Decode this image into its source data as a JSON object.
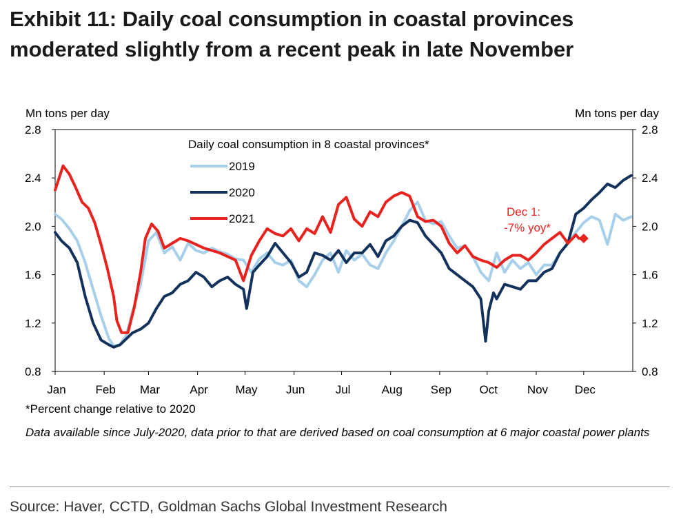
{
  "header": {
    "title": "Exhibit 11: Daily coal consumption in coastal provinces moderated slightly from a recent peak in late November"
  },
  "footnote": "*Percent change relative to 2020",
  "note": "Data available since July-2020, data prior to that are derived based on coal consumption at 6 major coastal power plants",
  "source": "Source: Haver, CCTD, Goldman Sachs Global Investment Research",
  "chart_data": {
    "type": "line",
    "title": "Daily coal consumption in 8 coastal provinces*",
    "ylabel_left": "Mn tons per day",
    "ylabel_right": "Mn tons per day",
    "ylim": [
      0.8,
      2.8
    ],
    "yticks": [
      "0.8",
      "1.2",
      "1.6",
      "2.0",
      "2.4",
      "2.8"
    ],
    "ytick_values": [
      0.8,
      1.2,
      1.6,
      2.0,
      2.4,
      2.8
    ],
    "x_tick_labels": [
      "Jan",
      "Feb",
      "Mar",
      "Apr",
      "May",
      "Jun",
      "Jul",
      "Aug",
      "Sep",
      "Oct",
      "Nov",
      "Dec"
    ],
    "x_unit": "day of year (1 = Jan 1)",
    "grid": false,
    "legend_position": "top-center",
    "annotation": {
      "text_line1": "Dec 1:",
      "text_line2": "-7% yoy*",
      "color": "#e8231e"
    },
    "series": [
      {
        "name": "2019",
        "color": "#a7cfea",
        "x": [
          1,
          5,
          10,
          15,
          20,
          25,
          30,
          35,
          38,
          42,
          46,
          50,
          55,
          60,
          65,
          70,
          75,
          80,
          85,
          90,
          95,
          100,
          105,
          110,
          115,
          120,
          125,
          130,
          135,
          140,
          145,
          150,
          155,
          160,
          165,
          170,
          175,
          180,
          185,
          190,
          195,
          200,
          205,
          210,
          215,
          220,
          225,
          230,
          235,
          240,
          245,
          250,
          255,
          260,
          265,
          270,
          275,
          280,
          285,
          290,
          295,
          300,
          305,
          310,
          315,
          320,
          325,
          330,
          335,
          340,
          345,
          350,
          355,
          360,
          365
        ],
        "values": [
          2.1,
          2.06,
          1.98,
          1.88,
          1.7,
          1.48,
          1.26,
          1.07,
          1.01,
          1.02,
          1.1,
          1.3,
          1.52,
          1.88,
          1.95,
          1.78,
          1.83,
          1.72,
          1.86,
          1.8,
          1.78,
          1.82,
          1.79,
          1.77,
          1.73,
          1.72,
          1.62,
          1.73,
          1.78,
          1.7,
          1.68,
          1.72,
          1.55,
          1.5,
          1.6,
          1.72,
          1.78,
          1.62,
          1.8,
          1.72,
          1.77,
          1.68,
          1.65,
          1.78,
          1.88,
          2.0,
          2.13,
          2.2,
          2.05,
          2.02,
          2.04,
          1.92,
          1.82,
          1.84,
          1.75,
          1.62,
          1.55,
          1.78,
          1.62,
          1.72,
          1.65,
          1.7,
          1.6,
          1.68,
          1.68,
          1.78,
          1.86,
          1.95,
          2.03,
          2.08,
          2.05,
          1.85,
          2.1,
          2.05,
          2.08
        ]
      },
      {
        "name": "2020",
        "color": "#12325c",
        "x": [
          1,
          5,
          10,
          15,
          20,
          25,
          30,
          35,
          38,
          42,
          46,
          50,
          55,
          60,
          65,
          70,
          75,
          80,
          85,
          90,
          95,
          100,
          105,
          110,
          115,
          120,
          122,
          126,
          130,
          135,
          140,
          145,
          150,
          155,
          160,
          165,
          170,
          175,
          180,
          185,
          190,
          195,
          200,
          205,
          210,
          215,
          220,
          225,
          230,
          235,
          240,
          245,
          250,
          255,
          260,
          265,
          270,
          273,
          275,
          278,
          280,
          285,
          290,
          295,
          300,
          305,
          310,
          315,
          320,
          325,
          330,
          335,
          340,
          345,
          350,
          355,
          360,
          365
        ],
        "values": [
          1.95,
          1.88,
          1.82,
          1.7,
          1.42,
          1.2,
          1.06,
          1.02,
          1.0,
          1.02,
          1.07,
          1.12,
          1.15,
          1.2,
          1.32,
          1.42,
          1.45,
          1.52,
          1.55,
          1.62,
          1.58,
          1.5,
          1.55,
          1.58,
          1.52,
          1.48,
          1.32,
          1.62,
          1.68,
          1.75,
          1.86,
          1.78,
          1.7,
          1.58,
          1.62,
          1.78,
          1.76,
          1.72,
          1.8,
          1.7,
          1.78,
          1.78,
          1.85,
          1.75,
          1.88,
          1.92,
          2.0,
          2.05,
          2.03,
          1.92,
          1.85,
          1.78,
          1.65,
          1.6,
          1.55,
          1.5,
          1.4,
          1.05,
          1.3,
          1.45,
          1.4,
          1.52,
          1.5,
          1.48,
          1.55,
          1.55,
          1.62,
          1.65,
          1.78,
          1.86,
          2.1,
          2.15,
          2.22,
          2.28,
          2.35,
          2.32,
          2.38,
          2.42
        ]
      },
      {
        "name": "2021",
        "color": "#e8231e",
        "x": [
          1,
          3,
          6,
          10,
          14,
          18,
          22,
          26,
          30,
          34,
          38,
          40,
          43,
          47,
          51,
          55,
          58,
          62,
          66,
          70,
          75,
          80,
          85,
          90,
          95,
          100,
          105,
          110,
          115,
          120,
          125,
          130,
          135,
          140,
          145,
          150,
          155,
          160,
          165,
          170,
          175,
          180,
          185,
          190,
          195,
          200,
          205,
          210,
          215,
          220,
          225,
          230,
          235,
          240,
          245,
          250,
          255,
          260,
          265,
          270,
          275,
          280,
          285,
          290,
          295,
          300,
          305,
          310,
          315,
          320,
          325,
          328,
          330,
          332,
          335
        ],
        "values": [
          2.3,
          2.38,
          2.5,
          2.43,
          2.32,
          2.2,
          2.15,
          2.03,
          1.85,
          1.65,
          1.42,
          1.22,
          1.12,
          1.12,
          1.33,
          1.62,
          1.9,
          2.02,
          1.96,
          1.82,
          1.86,
          1.9,
          1.88,
          1.85,
          1.82,
          1.8,
          1.78,
          1.75,
          1.72,
          1.55,
          1.76,
          1.88,
          1.98,
          1.94,
          1.92,
          1.98,
          1.88,
          1.98,
          1.94,
          2.08,
          1.95,
          2.18,
          2.24,
          2.06,
          2.0,
          2.12,
          2.08,
          2.2,
          2.25,
          2.28,
          2.25,
          2.08,
          2.04,
          2.05,
          2.0,
          1.86,
          1.78,
          1.84,
          1.75,
          1.72,
          1.7,
          1.66,
          1.72,
          1.76,
          1.76,
          1.72,
          1.78,
          1.85,
          1.9,
          1.95,
          1.86,
          1.9,
          1.93,
          1.9,
          1.9
        ]
      }
    ]
  }
}
